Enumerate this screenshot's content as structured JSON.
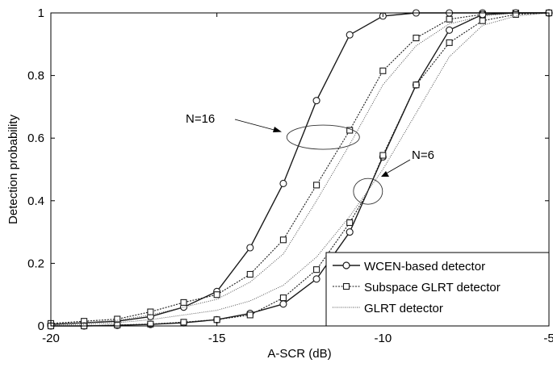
{
  "chart_data": {
    "type": "line",
    "title": "",
    "xlabel": "A-SCR (dB)",
    "ylabel": "Detection probability",
    "xlim": [
      -20,
      -5
    ],
    "ylim": [
      0,
      1
    ],
    "x_ticks": [
      -20,
      -15,
      -10,
      -5
    ],
    "y_ticks": [
      0,
      0.2,
      0.4,
      0.6,
      0.8,
      1
    ],
    "x_tick_labels": [
      "-20",
      "-15",
      "-10",
      "-5"
    ],
    "y_tick_labels": [
      "0",
      "0.2",
      "0.4",
      "0.6",
      "0.8",
      "1"
    ],
    "grid": false,
    "legend_position": "bottom-right",
    "annotations": [
      {
        "text": "N=16",
        "target": "N=16 curve group"
      },
      {
        "text": "N=6",
        "target": "N=6 curve group"
      }
    ],
    "series": [
      {
        "name": "WCEN-based detector",
        "group": "N=16",
        "style": "solid",
        "marker": "circle",
        "x": [
          -20,
          -19,
          -18,
          -17,
          -16,
          -15.5,
          -15,
          -14,
          -13,
          -12,
          -11,
          -10,
          -9,
          -8,
          -7,
          -6,
          -5
        ],
        "y": [
          0.005,
          0.01,
          0.015,
          0.03,
          0.06,
          0.085,
          0.11,
          0.25,
          0.455,
          0.72,
          0.93,
          0.99,
          1.0,
          1.0,
          1.0,
          1.0,
          1.0
        ]
      },
      {
        "name": "Subspace GLRT detector",
        "group": "N=16",
        "style": "dotted",
        "marker": "square",
        "x": [
          -20,
          -19,
          -18,
          -17,
          -16,
          -15,
          -14,
          -13,
          -12,
          -11,
          -10,
          -9,
          -8,
          -7,
          -6,
          -5
        ],
        "y": [
          0.008,
          0.015,
          0.022,
          0.045,
          0.075,
          0.1,
          0.165,
          0.275,
          0.45,
          0.625,
          0.815,
          0.92,
          0.98,
          0.995,
          1.0,
          1.0
        ]
      },
      {
        "name": "GLRT detector",
        "group": "N=16",
        "style": "dotted",
        "marker": "none",
        "x": [
          -20,
          -19,
          -18,
          -17,
          -16,
          -15,
          -14,
          -13,
          -12,
          -11,
          -10,
          -9,
          -8,
          -7,
          -6,
          -5
        ],
        "y": [
          0.005,
          0.01,
          0.018,
          0.035,
          0.06,
          0.085,
          0.14,
          0.23,
          0.4,
          0.58,
          0.77,
          0.895,
          0.965,
          0.99,
          1.0,
          1.0
        ]
      },
      {
        "name": "WCEN-based detector",
        "group": "N=6",
        "style": "solid",
        "marker": "circle",
        "x": [
          -20,
          -19,
          -18,
          -17,
          -16,
          -15,
          -14,
          -13,
          -12,
          -11,
          -10.5,
          -10,
          -9,
          -8,
          -7,
          -6,
          -5
        ],
        "y": [
          0.0,
          0.0,
          0.002,
          0.005,
          0.01,
          0.02,
          0.04,
          0.07,
          0.15,
          0.3,
          0.42,
          0.54,
          0.77,
          0.945,
          0.995,
          1.0,
          1.0
        ]
      },
      {
        "name": "Subspace GLRT detector",
        "group": "N=6",
        "style": "dotted",
        "marker": "square",
        "x": [
          -20,
          -19,
          -18,
          -17,
          -16,
          -15,
          -14,
          -13,
          -12,
          -11,
          -10.5,
          -10,
          -9,
          -8,
          -7,
          -6,
          -5
        ],
        "y": [
          0.0,
          0.0,
          0.003,
          0.006,
          0.012,
          0.02,
          0.035,
          0.09,
          0.18,
          0.33,
          0.42,
          0.545,
          0.77,
          0.905,
          0.975,
          0.995,
          1.0
        ]
      },
      {
        "name": "GLRT detector",
        "group": "N=6",
        "style": "dotted",
        "marker": "none",
        "x": [
          -20,
          -19,
          -18,
          -17,
          -16,
          -15,
          -14,
          -13,
          -12,
          -11,
          -10,
          -9,
          -8,
          -7,
          -6,
          -5
        ],
        "y": [
          0.002,
          0.005,
          0.01,
          0.02,
          0.035,
          0.05,
          0.08,
          0.13,
          0.22,
          0.35,
          0.5,
          0.68,
          0.86,
          0.96,
          0.99,
          1.0
        ]
      }
    ],
    "legend": [
      {
        "label": "WCEN-based detector",
        "style": "solid",
        "marker": "circle"
      },
      {
        "label": "Subspace GLRT detector",
        "style": "dotted",
        "marker": "square"
      },
      {
        "label": "GLRT detector",
        "style": "dotted",
        "marker": "none"
      }
    ]
  }
}
